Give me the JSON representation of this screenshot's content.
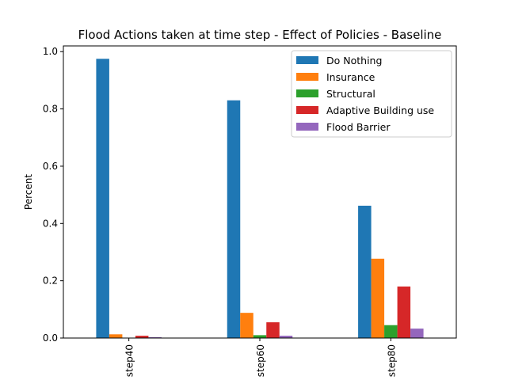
{
  "chart_data": {
    "type": "bar",
    "title": "Flood Actions taken at time step - Effect of Policies - Baseline",
    "xlabel": "",
    "ylabel": "Percent",
    "categories": [
      "step40",
      "step60",
      "step80"
    ],
    "ylim": [
      0,
      1.02
    ],
    "yticks": [
      "0.0",
      "0.2",
      "0.4",
      "0.6",
      "0.8",
      "1.0"
    ],
    "grid": false,
    "legend_position": "top-right",
    "series": [
      {
        "name": "Do Nothing",
        "color": "#1f77b4",
        "values": [
          0.975,
          0.83,
          0.462
        ]
      },
      {
        "name": "Insurance",
        "color": "#ff7f0e",
        "values": [
          0.013,
          0.088,
          0.277
        ]
      },
      {
        "name": "Structural",
        "color": "#2ca02c",
        "values": [
          0.0,
          0.01,
          0.045
        ]
      },
      {
        "name": "Adaptive Building use",
        "color": "#d62728",
        "values": [
          0.008,
          0.055,
          0.18
        ]
      },
      {
        "name": "Flood Barrier",
        "color": "#9467bd",
        "values": [
          0.003,
          0.008,
          0.033
        ]
      }
    ]
  }
}
